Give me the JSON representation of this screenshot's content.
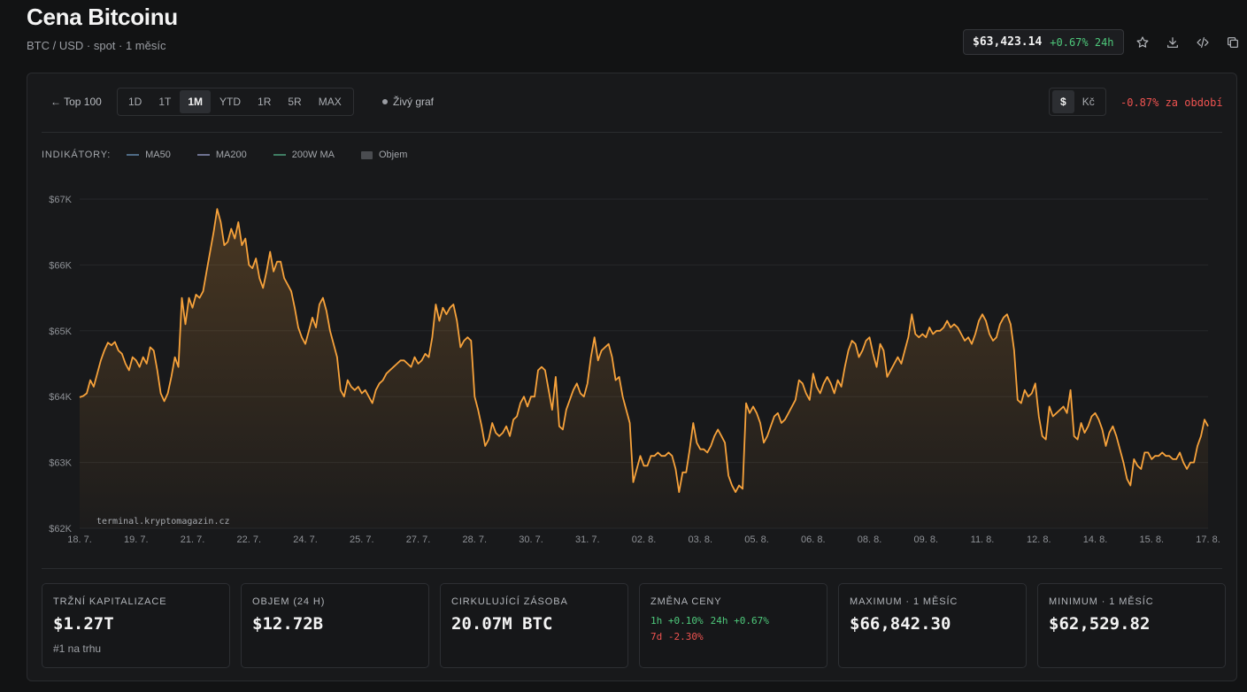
{
  "header": {
    "title": "Cena Bitcoinu",
    "subtitle": "BTC / USD · spot · 1 měsíc",
    "price": "$63,423.14",
    "change_24h": "+0.67% 24h"
  },
  "toolbar": {
    "back_label": "← Top 100",
    "ranges": [
      "1D",
      "1T",
      "1M",
      "YTD",
      "1R",
      "5R",
      "MAX"
    ],
    "active_range": "1M",
    "live_label": "Živý graf",
    "currencies": [
      "$",
      "Kč"
    ],
    "active_currency": "$",
    "period_change": "-0.87% za období"
  },
  "indicators": {
    "title": "INDIKÁTORY:",
    "items": [
      {
        "label": "MA50",
        "color": "#4f6b86"
      },
      {
        "label": "MA200",
        "color": "#6e7391"
      },
      {
        "label": "200W MA",
        "color": "#3f7d63"
      },
      {
        "label": "Objem",
        "color": "#4a4c50"
      }
    ]
  },
  "chart_data": {
    "type": "area",
    "title": "",
    "xlabel": "",
    "ylabel": "",
    "ylim": [
      62000,
      67000
    ],
    "yticks": [
      "$62K",
      "$63K",
      "$64K",
      "$65K",
      "$66K",
      "$67K"
    ],
    "ytick_values": [
      62000,
      63000,
      64000,
      65000,
      66000,
      67000
    ],
    "xticks": [
      "18. 7.",
      "19. 7.",
      "21. 7.",
      "22. 7.",
      "24. 7.",
      "25. 7.",
      "27. 7.",
      "28. 7.",
      "30. 7.",
      "31. 7.",
      "02. 8.",
      "03. 8.",
      "05. 8.",
      "06. 8.",
      "08. 8.",
      "09. 8.",
      "11. 8.",
      "12. 8.",
      "14. 8.",
      "15. 8.",
      "17. 8."
    ],
    "watermark": "terminal.kryptomagazin.cz",
    "line_color": "#f7a23b",
    "grid": true,
    "series": [
      {
        "values": [
          63990,
          64010,
          64050,
          64250,
          64150,
          64350,
          64550,
          64700,
          64820,
          64780,
          64830,
          64700,
          64650,
          64500,
          64400,
          64600,
          64550,
          64450,
          64600,
          64500,
          64750,
          64700,
          64400,
          64050,
          63930,
          64050,
          64300,
          64600,
          64450,
          65500,
          65100,
          65500,
          65350,
          65550,
          65500,
          65600,
          65900,
          66200,
          66500,
          66850,
          66650,
          66300,
          66350,
          66550,
          66400,
          66650,
          66300,
          66400,
          66000,
          65950,
          66100,
          65800,
          65650,
          65900,
          66200,
          65900,
          66050,
          66050,
          65800,
          65700,
          65600,
          65350,
          65050,
          64900,
          64800,
          65000,
          65200,
          65050,
          65400,
          65500,
          65300,
          65000,
          64800,
          64600,
          64100,
          64000,
          64250,
          64150,
          64100,
          64150,
          64050,
          64100,
          64000,
          63900,
          64100,
          64200,
          64250,
          64350,
          64400,
          64450,
          64500,
          64550,
          64550,
          64500,
          64450,
          64600,
          64500,
          64550,
          64650,
          64600,
          64900,
          65400,
          65150,
          65350,
          65250,
          65350,
          65400,
          65150,
          64750,
          64850,
          64900,
          64850,
          64000,
          63800,
          63550,
          63250,
          63350,
          63600,
          63450,
          63400,
          63450,
          63550,
          63400,
          63650,
          63700,
          63900,
          64000,
          63850,
          64000,
          64000,
          64400,
          64450,
          64400,
          64100,
          63800,
          64300,
          63550,
          63500,
          63800,
          63950,
          64100,
          64200,
          64050,
          64000,
          64200,
          64600,
          64900,
          64550,
          64700,
          64750,
          64800,
          64600,
          64250,
          64300,
          64000,
          63800,
          63600,
          62700,
          62900,
          63100,
          62950,
          62950,
          63100,
          63100,
          63150,
          63100,
          63100,
          63150,
          63100,
          62900,
          62550,
          62850,
          62850,
          63200,
          63600,
          63300,
          63200,
          63200,
          63150,
          63250,
          63400,
          63500,
          63400,
          63300,
          62800,
          62650,
          62550,
          62650,
          62600,
          63900,
          63750,
          63850,
          63750,
          63600,
          63300,
          63400,
          63550,
          63700,
          63750,
          63600,
          63650,
          63750,
          63850,
          63950,
          64250,
          64200,
          64050,
          63950,
          64350,
          64150,
          64050,
          64200,
          64300,
          64200,
          64050,
          64250,
          64150,
          64450,
          64700,
          64850,
          64800,
          64600,
          64700,
          64850,
          64900,
          64650,
          64450,
          64800,
          64700,
          64300,
          64400,
          64500,
          64600,
          64500,
          64700,
          64900,
          65250,
          64950,
          64900,
          64950,
          64900,
          65050,
          64950,
          65000,
          65000,
          65050,
          65150,
          65050,
          65100,
          65050,
          64950,
          64850,
          64900,
          64800,
          64950,
          65150,
          65250,
          65150,
          64950,
          64850,
          64900,
          65100,
          65200,
          65250,
          65100,
          64700,
          63950,
          63900,
          64100,
          64000,
          64050,
          64200,
          63700,
          63400,
          63350,
          63850,
          63700,
          63750,
          63800,
          63850,
          63750,
          64100,
          63400,
          63350,
          63600,
          63450,
          63550,
          63700,
          63750,
          63650,
          63500,
          63250,
          63450,
          63550,
          63400,
          63200,
          63000,
          62750,
          62650,
          63050,
          62950,
          62900,
          63150,
          63150,
          63050,
          63100,
          63100,
          63150,
          63100,
          63100,
          63050,
          63050,
          63150,
          63000,
          62900,
          63000,
          63000,
          63250,
          63400,
          63650,
          63550
        ]
      }
    ]
  },
  "stats": [
    {
      "label": "Tržní kapitalizace",
      "value": "$1.27T",
      "sub": "#1 na trhu"
    },
    {
      "label": "Objem (24 h)",
      "value": "$12.72B"
    },
    {
      "label": "Cirkulující zásoba",
      "value": "20.07M BTC"
    },
    {
      "label": "Změna ceny",
      "changes": [
        {
          "text": "1h +0.10%",
          "tone": "pos"
        },
        {
          "text": "24h +0.67%",
          "tone": "pos"
        },
        {
          "text": "7d -2.30%",
          "tone": "neg"
        }
      ]
    },
    {
      "label": "Maximum · 1 měsíc",
      "value": "$66,842.30"
    },
    {
      "label": "Minimum · 1 měsíc",
      "value": "$62,529.82"
    }
  ]
}
